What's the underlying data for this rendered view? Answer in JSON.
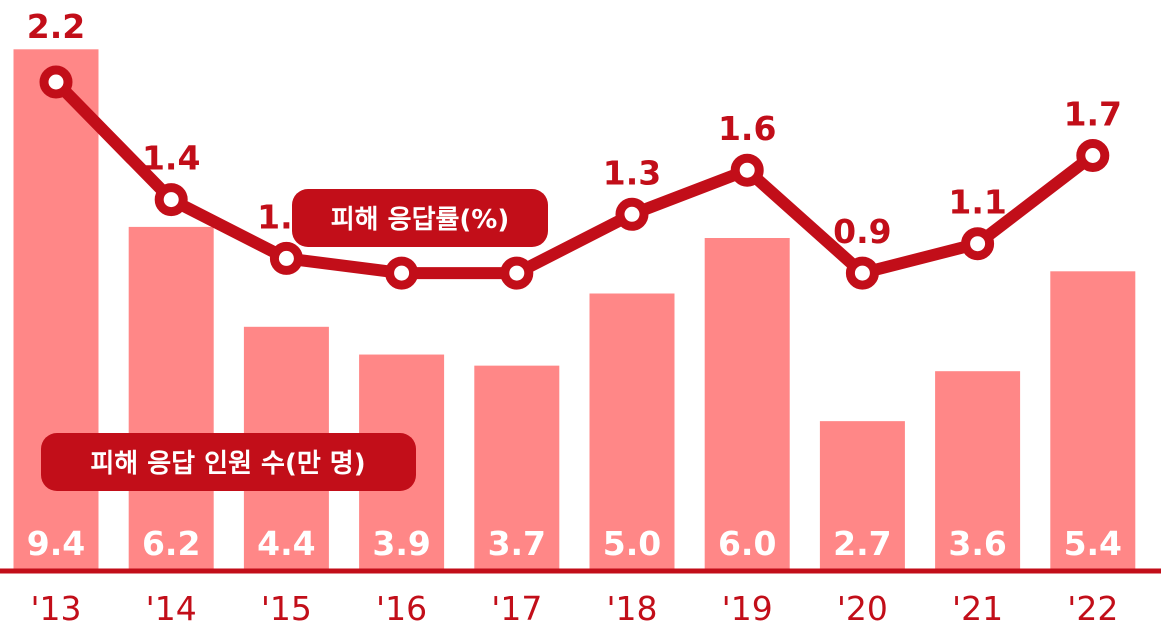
{
  "chart_data": {
    "type": "bar",
    "categories": [
      "'13",
      "'14",
      "'15",
      "'16",
      "'17",
      "'18",
      "'19",
      "'20",
      "'21",
      "'22"
    ],
    "series": [
      {
        "name": "피해 응답 인원 수(만 명)",
        "type": "bar",
        "values": [
          9.4,
          6.2,
          4.4,
          3.9,
          3.7,
          5.0,
          6.0,
          2.7,
          3.6,
          5.4
        ]
      },
      {
        "name": "피해 응답률(%)",
        "type": "line",
        "values": [
          2.2,
          1.4,
          1.0,
          0.9,
          0.9,
          1.3,
          1.6,
          0.9,
          1.1,
          1.7
        ]
      }
    ],
    "colors": {
      "bar": "#ff8787",
      "line": "#c20e19",
      "axis": "#c20e19"
    }
  }
}
